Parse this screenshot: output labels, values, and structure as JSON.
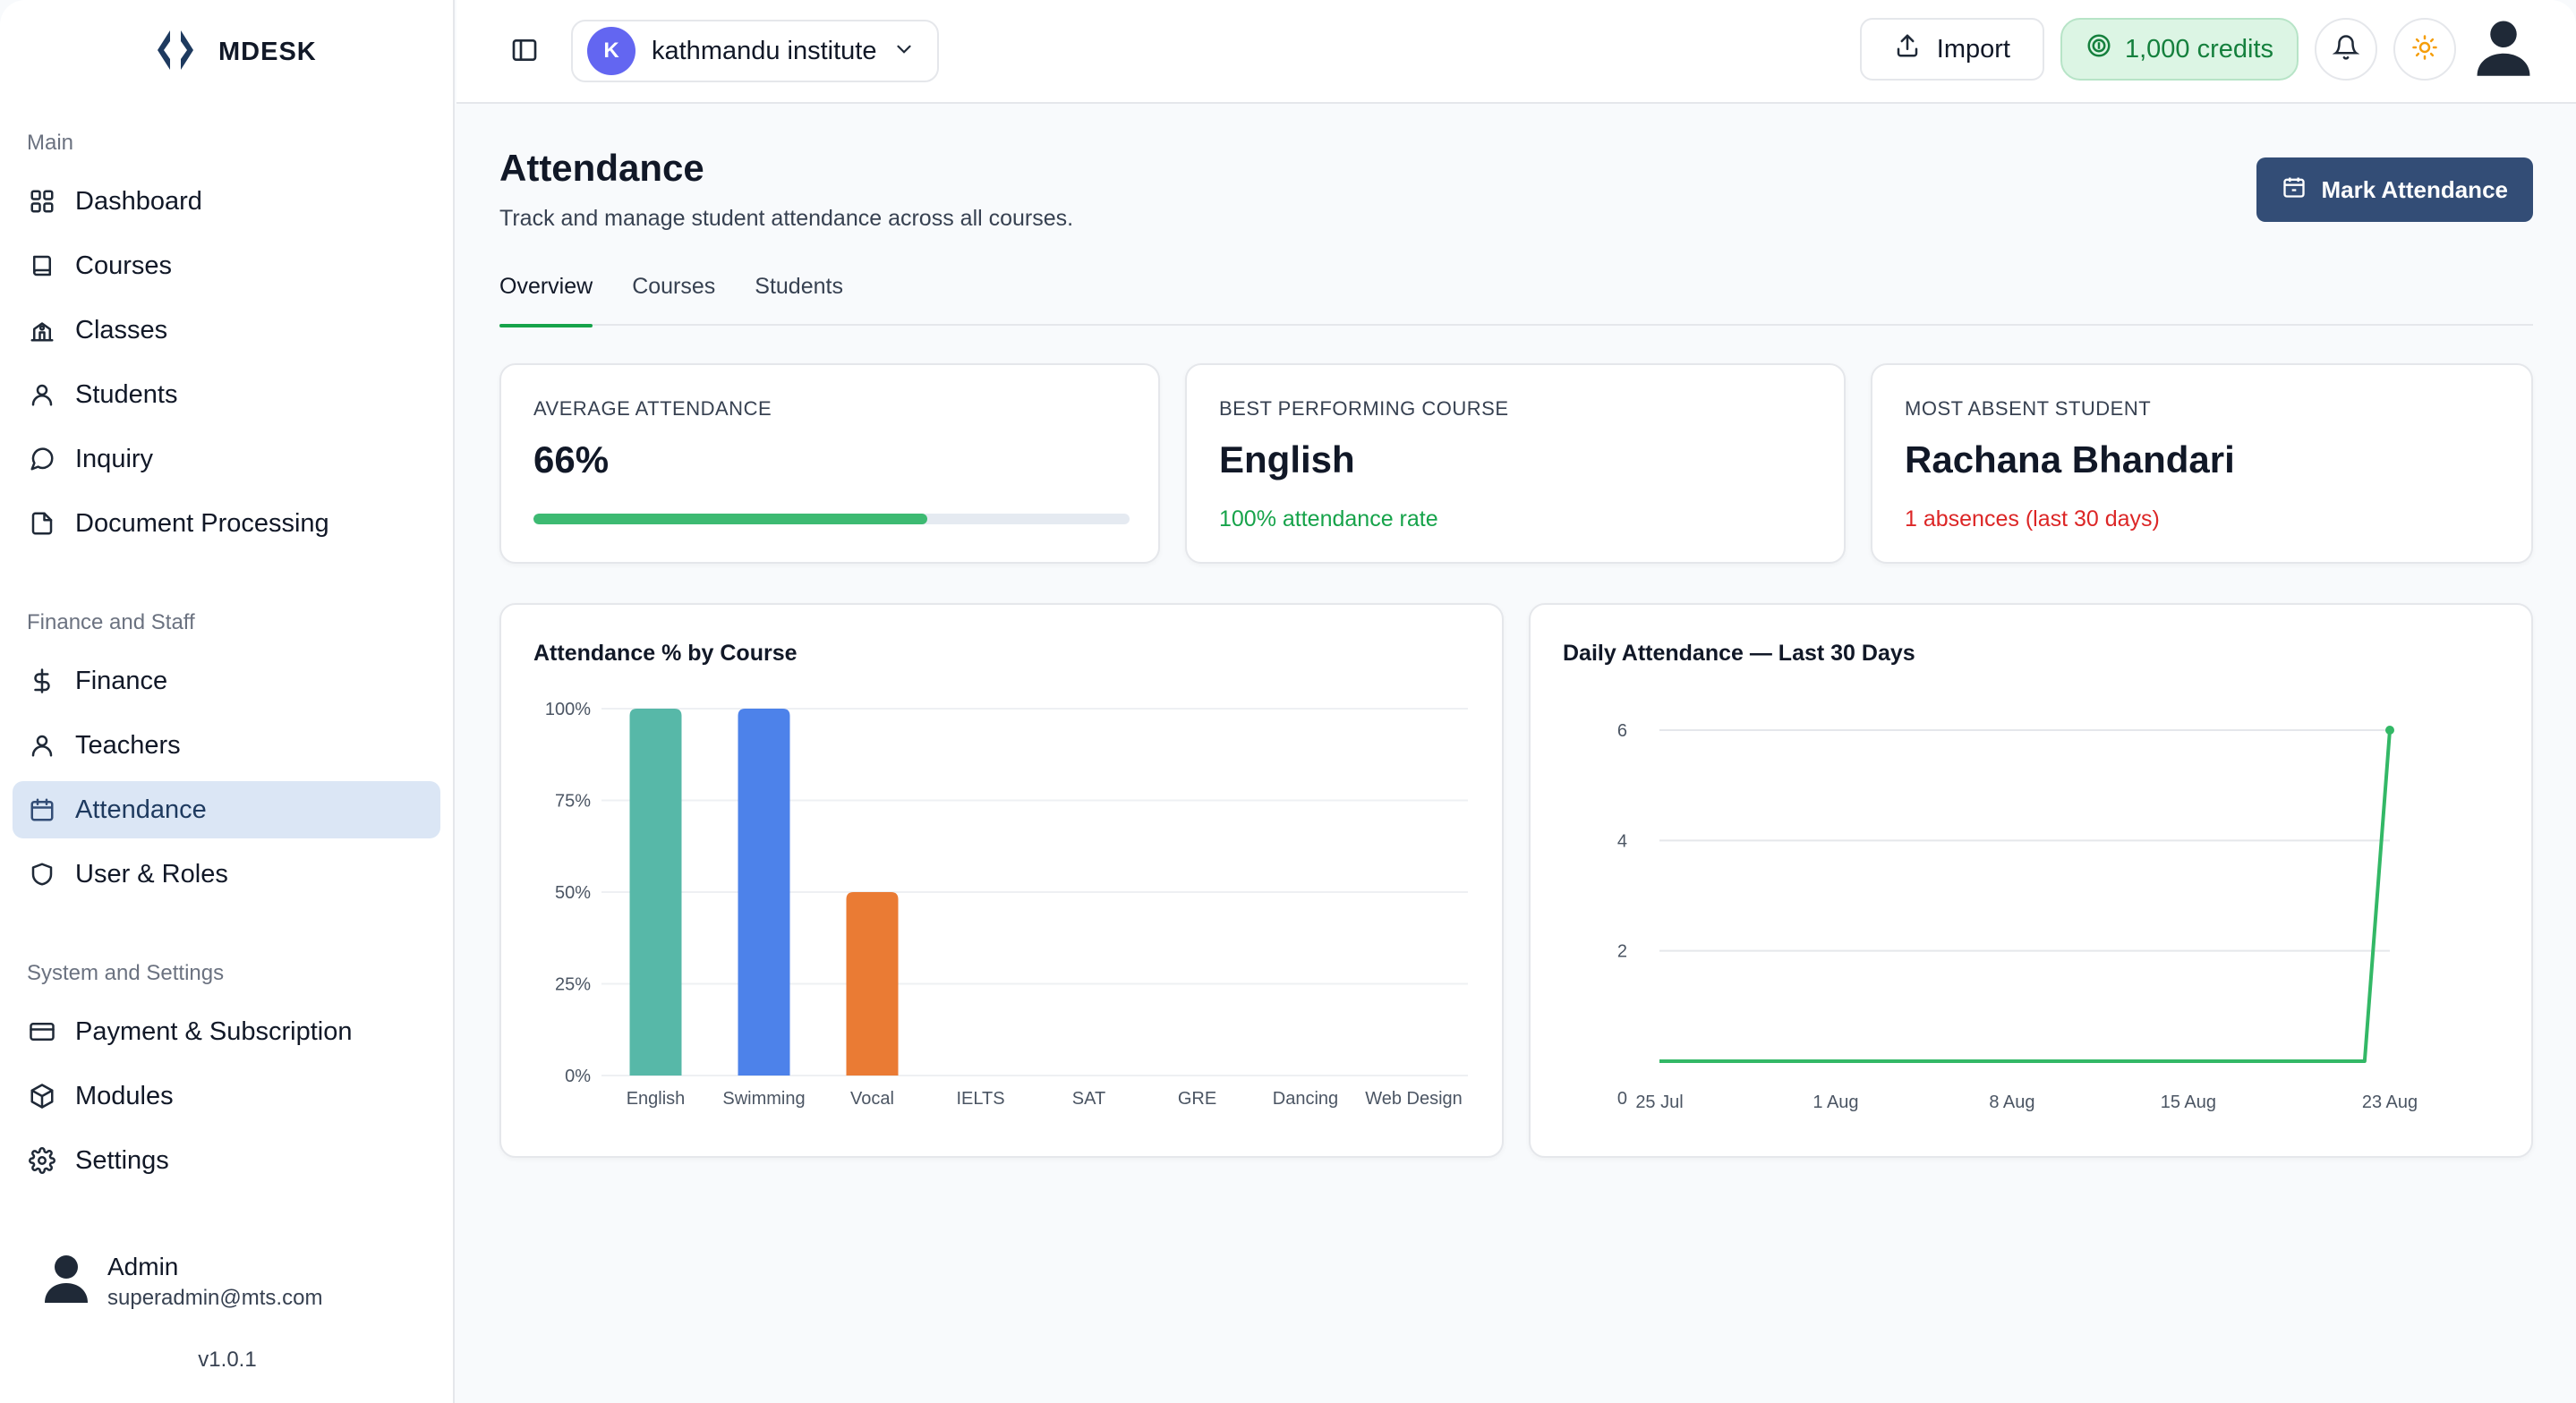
{
  "brand": {
    "name": "MDESK"
  },
  "sidebar": {
    "sections": [
      {
        "title": "Main"
      },
      {
        "title": "Finance and Staff"
      },
      {
        "title": "System and Settings"
      }
    ],
    "items": [
      {
        "label": "Dashboard",
        "icon": "grid-icon"
      },
      {
        "label": "Courses",
        "icon": "book-icon"
      },
      {
        "label": "Classes",
        "icon": "school-icon"
      },
      {
        "label": "Students",
        "icon": "user-icon"
      },
      {
        "label": "Inquiry",
        "icon": "chat-icon"
      },
      {
        "label": "Document Processing",
        "icon": "file-icon"
      },
      {
        "label": "Finance",
        "icon": "dollar-icon"
      },
      {
        "label": "Teachers",
        "icon": "user-icon"
      },
      {
        "label": "Attendance",
        "icon": "calendar-icon",
        "active": true
      },
      {
        "label": "User & Roles",
        "icon": "shield-icon"
      },
      {
        "label": "Payment & Subscription",
        "icon": "card-icon"
      },
      {
        "label": "Modules",
        "icon": "package-icon"
      },
      {
        "label": "Settings",
        "icon": "gear-icon"
      }
    ],
    "user": {
      "name": "Admin",
      "email": "superadmin@mts.com"
    },
    "version": "v1.0.1"
  },
  "topbar": {
    "org_initial": "K",
    "org_name": "kathmandu institute",
    "import_label": "Import",
    "credits_label": "1,000 credits"
  },
  "page": {
    "title": "Attendance",
    "subtitle": "Track and manage student attendance across all courses.",
    "mark_button": "Mark Attendance",
    "tabs": [
      "Overview",
      "Courses",
      "Students"
    ],
    "active_tab": "Overview"
  },
  "stats": {
    "average": {
      "label": "AVERAGE ATTENDANCE",
      "value": "66%",
      "progress": 0.66
    },
    "best": {
      "label": "BEST PERFORMING COURSE",
      "value": "English",
      "note": "100% attendance rate"
    },
    "absent": {
      "label": "MOST ABSENT STUDENT",
      "value": "Rachana Bhandari",
      "note": "1 absences (last 30 days)"
    }
  },
  "colors": {
    "accent": "#334d76",
    "success": "#16a34a",
    "danger": "#dc2626",
    "active_nav": "#dbe6f5"
  },
  "chart_data": [
    {
      "type": "bar",
      "title": "Attendance % by Course",
      "categories": [
        "English",
        "Swimming",
        "Vocal",
        "IELTS",
        "SAT",
        "GRE",
        "Dancing",
        "Web Design"
      ],
      "values": [
        100,
        100,
        50,
        0,
        0,
        0,
        0,
        0
      ],
      "colors": [
        "#57b8a8",
        "#4d82ea",
        "#ea7b34"
      ],
      "ylim": [
        0,
        100
      ],
      "yticks": [
        "0%",
        "25%",
        "50%",
        "75%",
        "100%"
      ],
      "grid": true
    },
    {
      "type": "line",
      "title": "Daily Attendance — Last 30 Days",
      "x": [
        "25 Jul",
        "26 Jul",
        "27 Jul",
        "28 Jul",
        "29 Jul",
        "30 Jul",
        "31 Jul",
        "1 Aug",
        "2 Aug",
        "3 Aug",
        "4 Aug",
        "5 Aug",
        "6 Aug",
        "7 Aug",
        "8 Aug",
        "9 Aug",
        "10 Aug",
        "11 Aug",
        "12 Aug",
        "13 Aug",
        "14 Aug",
        "15 Aug",
        "16 Aug",
        "17 Aug",
        "18 Aug",
        "19 Aug",
        "20 Aug",
        "21 Aug",
        "22 Aug",
        "23 Aug"
      ],
      "y": [
        0,
        0,
        0,
        0,
        0,
        0,
        0,
        0,
        0,
        0,
        0,
        0,
        0,
        0,
        0,
        0,
        0,
        0,
        0,
        0,
        0,
        0,
        0,
        0,
        0,
        0,
        0,
        0,
        0,
        6
      ],
      "xtick_labels": [
        "25 Jul",
        "1 Aug",
        "8 Aug",
        "15 Aug",
        "23 Aug"
      ],
      "yticks": [
        0,
        2,
        4,
        6
      ],
      "ylim": [
        0,
        6
      ],
      "color": "#33b866",
      "grid": true
    }
  ]
}
